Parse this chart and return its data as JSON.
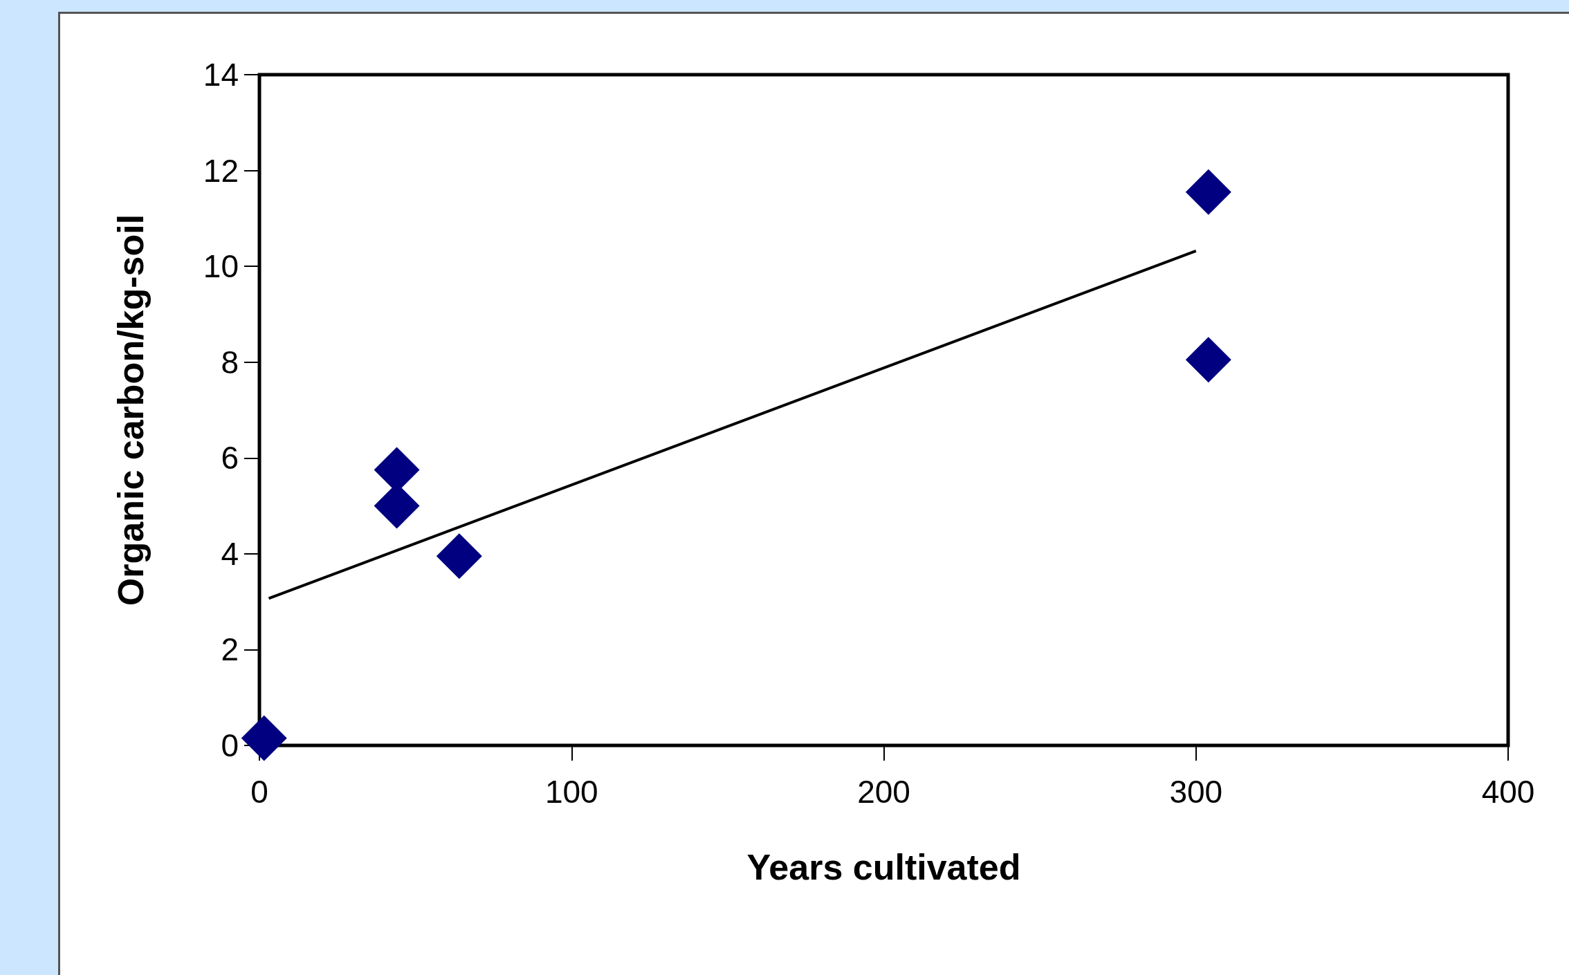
{
  "chart_data": {
    "type": "scatter",
    "xlabel": "Years cultivated",
    "ylabel": "Organic carbon/kg-soil",
    "xlim": [
      0,
      400
    ],
    "xticks": [
      0,
      100,
      200,
      300,
      400
    ],
    "ylim": [
      0,
      14
    ],
    "yticks": [
      0,
      2,
      4,
      6,
      8,
      10,
      12,
      14
    ],
    "grid": false,
    "marker": "diamond",
    "series": [
      {
        "color": "#000080",
        "x": [
          1.5,
          44,
          44,
          64,
          304,
          304
        ],
        "values": [
          0.15,
          5.75,
          5.0,
          3.95,
          11.55,
          8.05
        ]
      },
      {
        "type": "line",
        "color": "#000000",
        "line_style": "solid",
        "marker": "none",
        "x": [
          3,
          300
        ],
        "values": [
          3.07,
          10.32
        ]
      }
    ]
  }
}
